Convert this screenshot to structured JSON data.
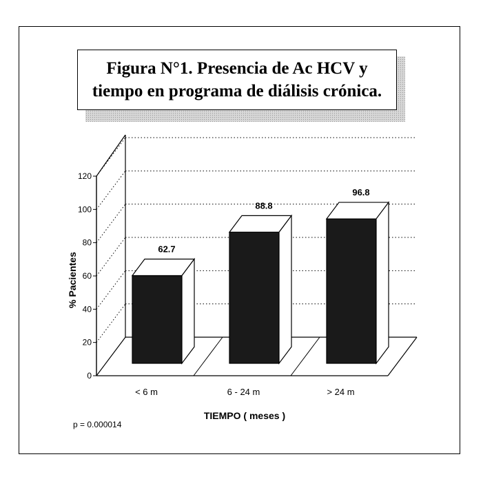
{
  "chart_data": {
    "type": "bar",
    "title": "Figura N°1. Presencia de Ac HCV y tiempo en programa de diálisis crónica.",
    "categories": [
      "< 6 m",
      "6 - 24 m",
      "> 24 m"
    ],
    "values": [
      62.7,
      88.8,
      96.8
    ],
    "value_labels": [
      "62.7",
      "88.8",
      "96.8"
    ],
    "xlabel": "TIEMPO ( meses )",
    "ylabel": "% Pacientes",
    "ylim": [
      0,
      120
    ],
    "yticks": [
      0,
      20,
      40,
      60,
      80,
      100,
      120
    ],
    "grid": true,
    "style": "3d"
  },
  "footnote": "p = 0.000014",
  "colors": {
    "bar_front": "#1a1a1a",
    "bar_top": "#ffffff",
    "bar_side": "#ffffff",
    "grid": "#000000"
  }
}
